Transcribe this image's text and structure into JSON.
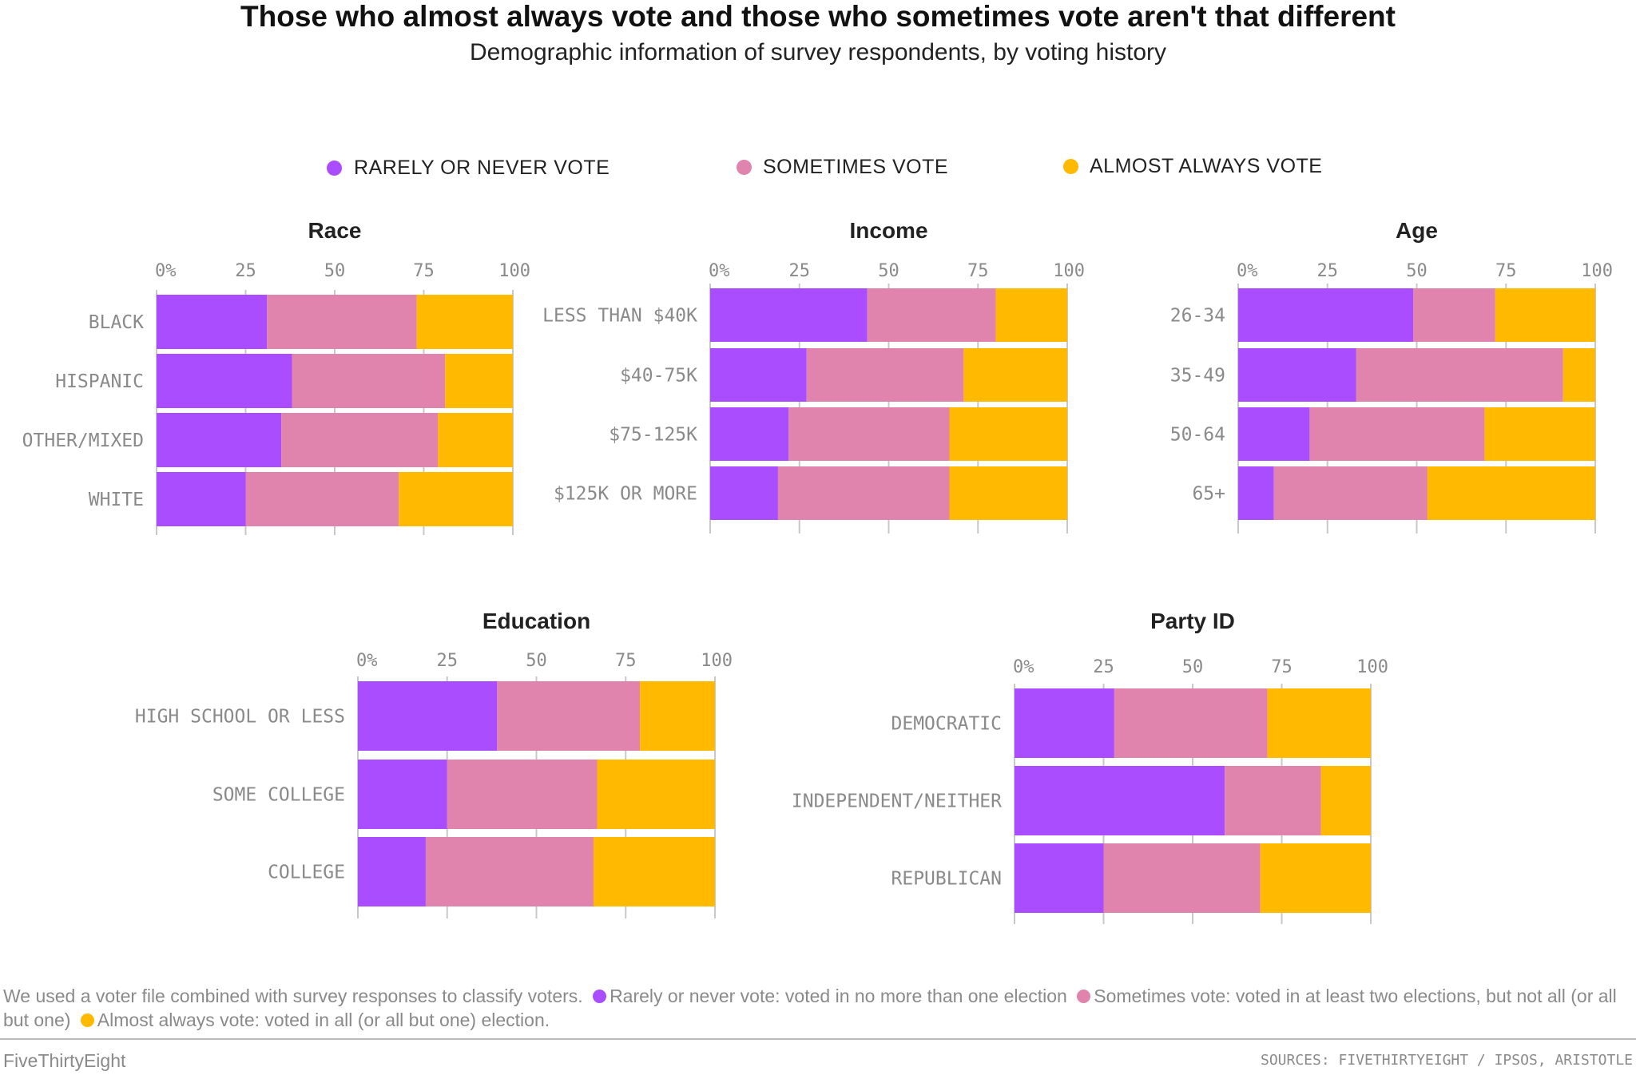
{
  "title": "Those who almost always vote and those who sometimes vote aren't that different",
  "subtitle": "Demographic information of survey respondents, by voting history",
  "legend": [
    {
      "label": "RARELY OR NEVER VOTE",
      "color": "#AA4CFF"
    },
    {
      "label": "SOMETIMES VOTE",
      "color": "#E083AD"
    },
    {
      "label": "ALMOST ALWAYS VOTE",
      "color": "#FFBA00"
    }
  ],
  "chart_data": [
    {
      "type": "bar",
      "orientation": "horizontal",
      "stacked": true,
      "title": "Race",
      "tick_labels": [
        "0%",
        "25",
        "50",
        "75",
        "100"
      ],
      "xlim": [
        0,
        100
      ],
      "categories": [
        "BLACK",
        "HISPANIC",
        "OTHER/MIXED",
        "WHITE"
      ],
      "series": [
        {
          "name": "RARELY OR NEVER VOTE",
          "values": [
            31,
            38,
            35,
            25
          ]
        },
        {
          "name": "SOMETIMES VOTE",
          "values": [
            42,
            43,
            44,
            43
          ]
        },
        {
          "name": "ALMOST ALWAYS VOTE",
          "values": [
            27,
            19,
            21,
            32
          ]
        }
      ]
    },
    {
      "type": "bar",
      "orientation": "horizontal",
      "stacked": true,
      "title": "Income",
      "tick_labels": [
        "0%",
        "25",
        "50",
        "75",
        "100"
      ],
      "xlim": [
        0,
        100
      ],
      "categories": [
        "LESS THAN $40K",
        "$40-75K",
        "$75-125K",
        "$125K OR MORE"
      ],
      "series": [
        {
          "name": "RARELY OR NEVER VOTE",
          "values": [
            44,
            27,
            22,
            19
          ]
        },
        {
          "name": "SOMETIMES VOTE",
          "values": [
            36,
            44,
            45,
            48
          ]
        },
        {
          "name": "ALMOST ALWAYS VOTE",
          "values": [
            20,
            29,
            33,
            33
          ]
        }
      ]
    },
    {
      "type": "bar",
      "orientation": "horizontal",
      "stacked": true,
      "title": "Age",
      "tick_labels": [
        "0%",
        "25",
        "50",
        "75",
        "100"
      ],
      "xlim": [
        0,
        100
      ],
      "categories": [
        "26-34",
        "35-49",
        "50-64",
        "65+"
      ],
      "series": [
        {
          "name": "RARELY OR NEVER VOTE",
          "values": [
            49,
            33,
            20,
            10
          ]
        },
        {
          "name": "SOMETIMES VOTE",
          "values": [
            23,
            58,
            49,
            43
          ]
        },
        {
          "name": "ALMOST ALWAYS VOTE",
          "values": [
            28,
            9,
            31,
            47
          ]
        }
      ]
    },
    {
      "type": "bar",
      "orientation": "horizontal",
      "stacked": true,
      "title": "Education",
      "tick_labels": [
        "0%",
        "25",
        "50",
        "75",
        "100"
      ],
      "xlim": [
        0,
        100
      ],
      "categories": [
        "HIGH SCHOOL OR LESS",
        "SOME COLLEGE",
        "COLLEGE"
      ],
      "series": [
        {
          "name": "RARELY OR NEVER VOTE",
          "values": [
            39,
            25,
            19
          ]
        },
        {
          "name": "SOMETIMES VOTE",
          "values": [
            40,
            42,
            47
          ]
        },
        {
          "name": "ALMOST ALWAYS VOTE",
          "values": [
            21,
            33,
            34
          ]
        }
      ]
    },
    {
      "type": "bar",
      "orientation": "horizontal",
      "stacked": true,
      "title": "Party ID",
      "tick_labels": [
        "0%",
        "25",
        "50",
        "75",
        "100"
      ],
      "xlim": [
        0,
        100
      ],
      "categories": [
        "DEMOCRATIC",
        "INDEPENDENT/NEITHER",
        "REPUBLICAN"
      ],
      "series": [
        {
          "name": "RARELY OR NEVER VOTE",
          "values": [
            28,
            59,
            25
          ]
        },
        {
          "name": "SOMETIMES VOTE",
          "values": [
            43,
            27,
            44
          ]
        },
        {
          "name": "ALMOST ALWAYS VOTE",
          "values": [
            29,
            14,
            31
          ]
        }
      ]
    }
  ],
  "note": {
    "intro": "We used a voter file combined with survey responses to classify voters.",
    "items": [
      "Rarely or never vote: voted in no more than one election",
      "Sometimes vote: voted in at least two elections, but not all (or all but one)",
      "Almost always vote: voted in all (or all but one) election."
    ]
  },
  "footer": {
    "brand": "FiveThirtyEight",
    "sources": "SOURCES: FIVETHIRTYEIGHT / IPSOS, ARISTOTLE"
  }
}
